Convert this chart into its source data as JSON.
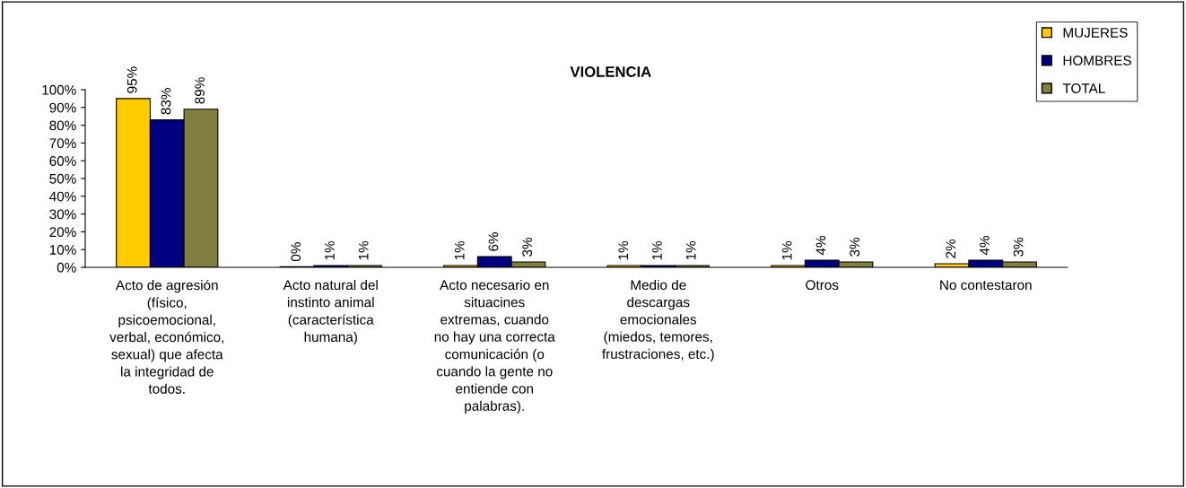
{
  "chart_data": {
    "type": "bar",
    "title": "VIOLENCIA",
    "categories": [
      "Acto de agresión\n(físico,\npsicoemocional,\nverbal, económico,\nsexual) que afecta\nla integridad de\ntodos.",
      "Acto natural del\ninstinto animal\n(característica\nhumana)",
      "Acto necesario en\nsituacines\nextremas, cuando\nno hay una correcta\ncomunicación (o\ncuando la gente no\nentiende con\npalabras).",
      "Medio de\ndescargas\nemocionales\n(miedos, temores,\nfrustraciones, etc.)",
      "Otros",
      "No contestaron"
    ],
    "series": [
      {
        "name": "MUJERES",
        "color": "#ffcc00",
        "values": [
          95,
          0.4,
          1,
          1,
          1,
          2
        ],
        "value_labels": [
          "95%",
          "0%",
          "1%",
          "1%",
          "1%",
          "2%"
        ]
      },
      {
        "name": "HOMBRES",
        "color": "#000080",
        "values": [
          83,
          1,
          6,
          1,
          4,
          4
        ],
        "value_labels": [
          "83%",
          "1%",
          "6%",
          "1%",
          "4%",
          "4%"
        ]
      },
      {
        "name": "TOTAL",
        "color": "#807f40",
        "values": [
          89,
          1,
          3,
          1,
          3,
          3
        ],
        "value_labels": [
          "89%",
          "1%",
          "3%",
          "1%",
          "3%",
          "3%"
        ]
      }
    ],
    "ylim": [
      0,
      100
    ],
    "yticks": [
      {
        "value": 0,
        "label": "0%"
      },
      {
        "value": 10,
        "label": "10%"
      },
      {
        "value": 20,
        "label": "20%"
      },
      {
        "value": 30,
        "label": "30%"
      },
      {
        "value": 40,
        "label": "40%"
      },
      {
        "value": 50,
        "label": "50%"
      },
      {
        "value": 60,
        "label": "60%"
      },
      {
        "value": 70,
        "label": "70%"
      },
      {
        "value": 80,
        "label": "80%"
      },
      {
        "value": 90,
        "label": "90%"
      },
      {
        "value": 100,
        "label": "100%"
      }
    ],
    "grid": false,
    "legend": "top right"
  }
}
